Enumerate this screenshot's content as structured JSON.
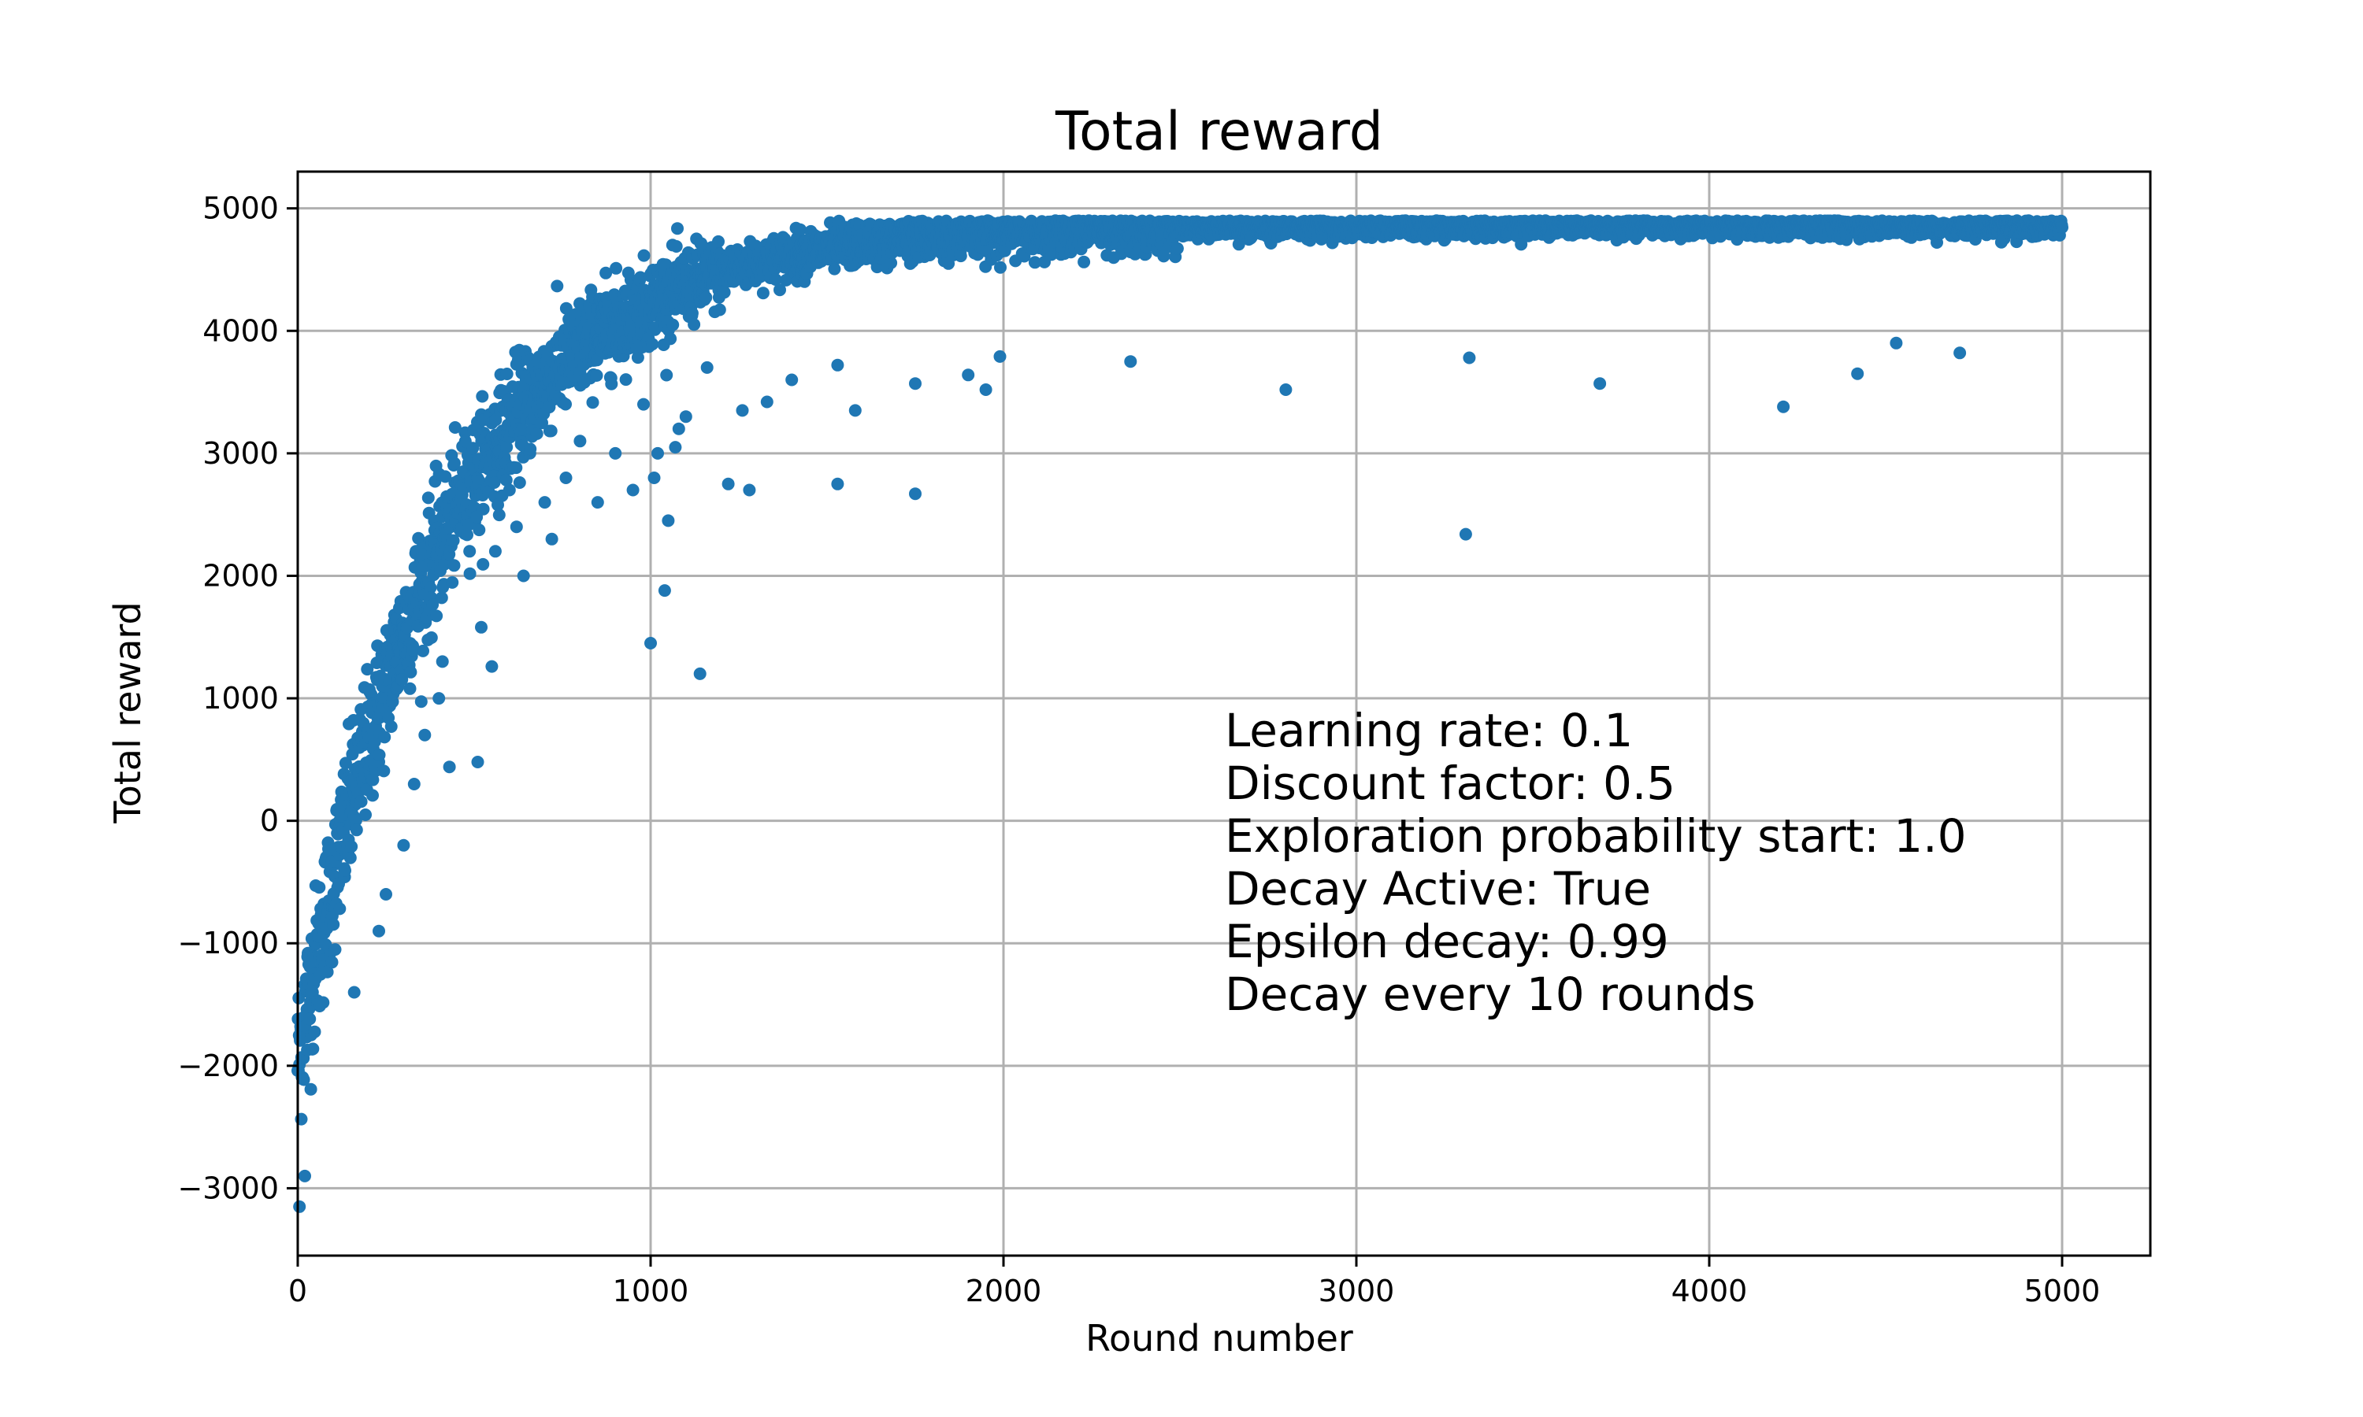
{
  "chart_data": {
    "type": "scatter",
    "title": "Total reward",
    "xlabel": "Round number",
    "ylabel": "Total reward",
    "xlim": [
      0,
      5250
    ],
    "ylim": [
      -3550,
      5300
    ],
    "x_ticks": [
      0,
      1000,
      2000,
      3000,
      4000,
      5000
    ],
    "y_ticks": [
      -3000,
      -2000,
      -1000,
      0,
      1000,
      2000,
      3000,
      4000,
      5000
    ],
    "x_tick_labels": [
      "0",
      "1000",
      "2000",
      "3000",
      "4000",
      "5000"
    ],
    "y_tick_labels": [
      "−3000",
      "−2000",
      "−1000",
      "0",
      "1000",
      "2000",
      "3000",
      "4000",
      "5000"
    ],
    "grid": true,
    "marker_color": "#1f77b4",
    "series": [
      {
        "outliers": [
          [
            5,
            -3150
          ],
          [
            20,
            -2900
          ],
          [
            160,
            -1400
          ],
          [
            230,
            -900
          ],
          [
            250,
            -600
          ],
          [
            300,
            -200
          ],
          [
            330,
            300
          ],
          [
            360,
            700
          ],
          [
            400,
            1000
          ],
          [
            410,
            1300
          ],
          [
            430,
            440
          ],
          [
            510,
            480
          ],
          [
            520,
            1580
          ],
          [
            550,
            1260
          ],
          [
            560,
            2200
          ],
          [
            600,
            2700
          ],
          [
            620,
            2400
          ],
          [
            640,
            2000
          ],
          [
            700,
            2600
          ],
          [
            720,
            2300
          ],
          [
            760,
            2800
          ],
          [
            800,
            3100
          ],
          [
            850,
            2600
          ],
          [
            900,
            3000
          ],
          [
            950,
            2700
          ],
          [
            980,
            3400
          ],
          [
            1000,
            1450
          ],
          [
            1010,
            2800
          ],
          [
            1020,
            3000
          ],
          [
            1040,
            1880
          ],
          [
            1050,
            2450
          ],
          [
            1070,
            3050
          ],
          [
            1080,
            3200
          ],
          [
            1100,
            3300
          ],
          [
            1140,
            1200
          ],
          [
            1160,
            3700
          ],
          [
            1220,
            2750
          ],
          [
            1260,
            3350
          ],
          [
            1280,
            2700
          ],
          [
            1330,
            3420
          ],
          [
            1400,
            3600
          ],
          [
            1530,
            3720
          ],
          [
            1530,
            2750
          ],
          [
            1580,
            3350
          ],
          [
            1750,
            3570
          ],
          [
            1750,
            2670
          ],
          [
            1900,
            3640
          ],
          [
            1950,
            3520
          ],
          [
            1990,
            3790
          ],
          [
            2360,
            3750
          ],
          [
            2800,
            3520
          ],
          [
            3310,
            2340
          ],
          [
            3320,
            3780
          ],
          [
            3690,
            3570
          ],
          [
            4210,
            3380
          ],
          [
            4420,
            3650
          ],
          [
            4530,
            3900
          ],
          [
            4710,
            3820
          ]
        ]
      }
    ],
    "annotation": [
      "Learning rate: 0.1",
      "Discount factor: 0.5",
      "Exploration probability start: 1.0",
      "Decay Active: True",
      "Epsilon decay: 0.99",
      "Decay every 10 rounds"
    ]
  }
}
